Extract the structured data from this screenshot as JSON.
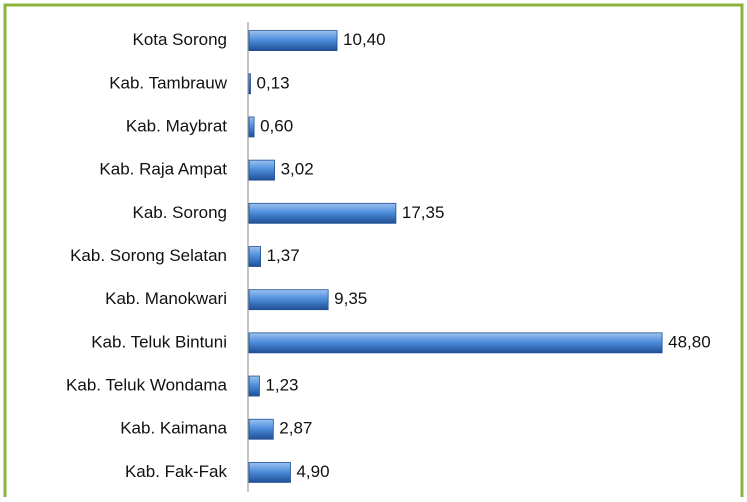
{
  "chart_data": {
    "type": "bar",
    "orientation": "horizontal",
    "categories": [
      "Kota Sorong",
      "Kab. Tambrauw",
      "Kab. Maybrat",
      "Kab. Raja Ampat",
      "Kab. Sorong",
      "Kab. Sorong Selatan",
      "Kab. Manokwari",
      "Kab. Teluk Bintuni",
      "Kab. Teluk Wondama",
      "Kab. Kaimana",
      "Kab. Fak-Fak"
    ],
    "values": [
      10.4,
      0.13,
      0.6,
      3.02,
      17.35,
      1.37,
      9.35,
      48.8,
      1.23,
      2.87,
      4.9
    ],
    "value_labels": [
      "10,40",
      "0,13",
      "0,60",
      "3,02",
      "17,35",
      "1,37",
      "9,35",
      "48,80",
      "1,23",
      "2,87",
      "4,90"
    ],
    "color": "#3a78c9",
    "xlim": [
      0,
      58
    ]
  }
}
